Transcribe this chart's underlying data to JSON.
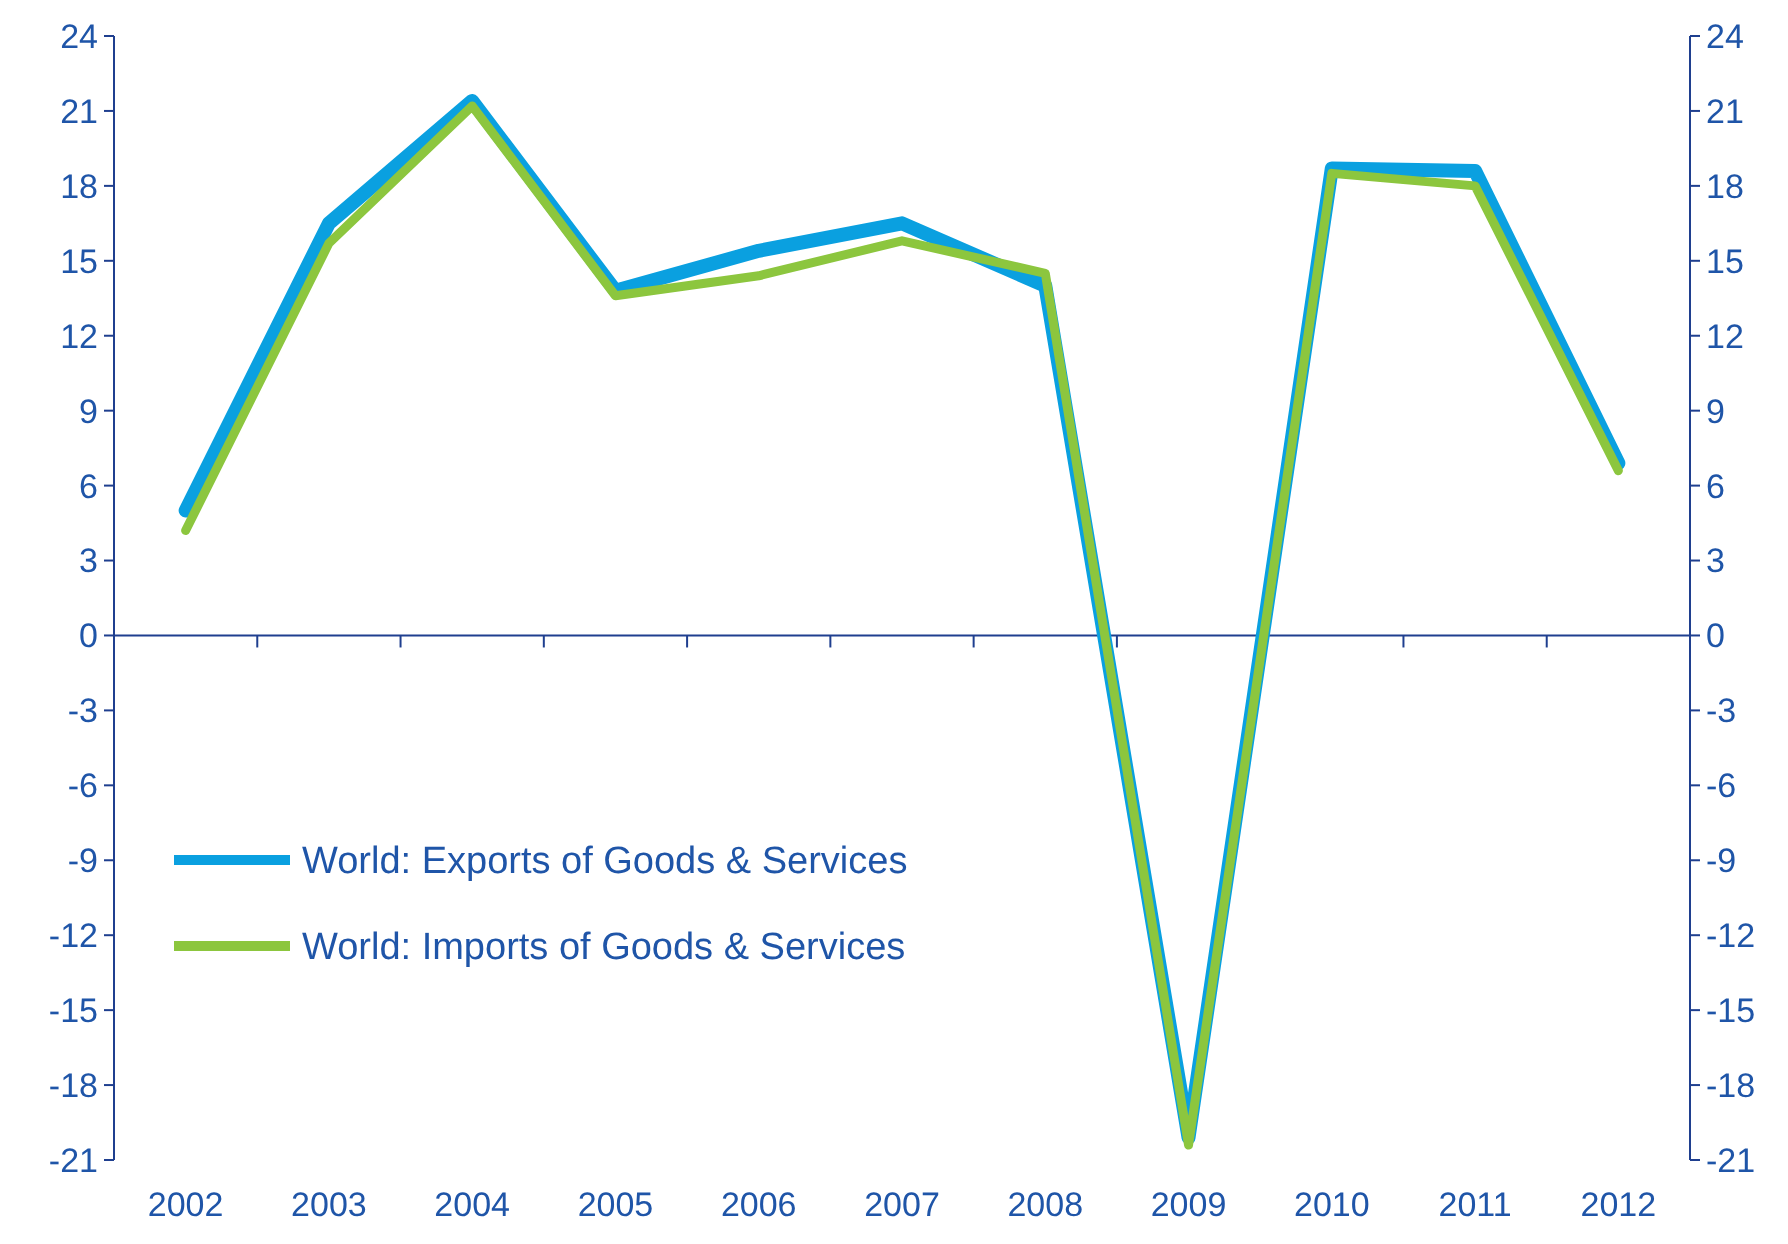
{
  "chart_data": {
    "type": "line",
    "categories": [
      "2002",
      "2003",
      "2004",
      "2005",
      "2006",
      "2007",
      "2008",
      "2009",
      "2010",
      "2011",
      "2012"
    ],
    "series": [
      {
        "name": "World: Exports of Goods & Services",
        "color": "#0aa0e0",
        "values": [
          5.0,
          16.5,
          21.4,
          13.8,
          15.4,
          16.5,
          14.0,
          -20.1,
          18.7,
          18.6,
          6.9
        ]
      },
      {
        "name": "World: Imports of Goods & Services",
        "color": "#8cc63e",
        "values": [
          4.2,
          15.7,
          21.2,
          13.6,
          14.4,
          15.8,
          14.5,
          -20.4,
          18.5,
          18.0,
          6.6
        ]
      }
    ],
    "ylim": [
      -21,
      24
    ],
    "yticks": [
      -21,
      -18,
      -15,
      -12,
      -9,
      -6,
      -3,
      0,
      3,
      6,
      9,
      12,
      15,
      18,
      21,
      24
    ],
    "y2lim": [
      -21,
      24
    ],
    "y2ticks": [
      -21,
      -18,
      -15,
      -12,
      -9,
      -6,
      -3,
      0,
      3,
      6,
      9,
      12,
      15,
      18,
      21,
      24
    ],
    "ref_lines": [
      {
        "axis": "y",
        "value": 0,
        "color": "#1f3f8f"
      }
    ],
    "legend": "bottom left",
    "marker": "none",
    "line_style": "solid"
  }
}
